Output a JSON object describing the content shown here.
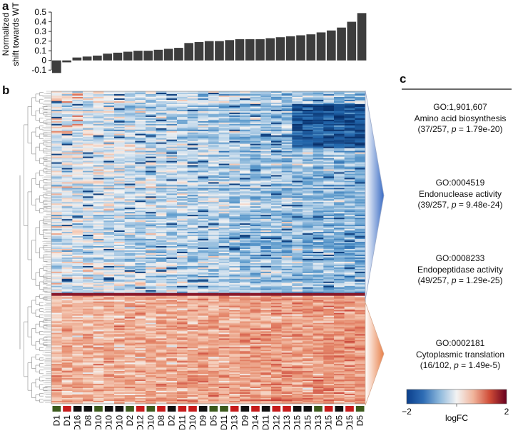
{
  "panels": {
    "a": "a",
    "b": "b",
    "c": "c"
  },
  "chart_data": [
    {
      "type": "bar",
      "panel": "a",
      "ylabel": "Normalized shift towards WT",
      "ylabel_lines": [
        "Normalized",
        "shift towards WT"
      ],
      "ylim": [
        -0.15,
        0.5
      ],
      "yticks": [
        "-0.1",
        "0",
        "0.1",
        "0.2",
        "0.3",
        "0.4",
        "0.5"
      ],
      "ytick_values": [
        -0.1,
        0,
        0.1,
        0.2,
        0.3,
        0.4,
        0.5
      ],
      "bar_color": "#3d3d3d",
      "values": [
        -0.13,
        -0.02,
        0.03,
        0.04,
        0.05,
        0.07,
        0.08,
        0.09,
        0.1,
        0.1,
        0.11,
        0.12,
        0.13,
        0.18,
        0.19,
        0.2,
        0.2,
        0.21,
        0.22,
        0.22,
        0.22,
        0.23,
        0.24,
        0.25,
        0.26,
        0.27,
        0.29,
        0.31,
        0.34,
        0.4,
        0.49
      ]
    },
    {
      "type": "heatmap",
      "panel": "b",
      "columns": [
        "D1",
        "D1",
        "D16",
        "D8",
        "D10",
        "D10",
        "D10",
        "D2",
        "D12",
        "D10",
        "D8",
        "D2",
        "D11",
        "D10",
        "D9",
        "D5",
        "D11",
        "D13",
        "D9",
        "D14",
        "D11",
        "D12",
        "D13",
        "D15",
        "D15",
        "D13",
        "D15",
        "D5",
        "D15",
        "D5"
      ],
      "column_groups": [
        "green",
        "red",
        "black",
        "black",
        "green",
        "black",
        "black",
        "green",
        "red",
        "green",
        "red",
        "black",
        "red",
        "red",
        "black",
        "green",
        "green",
        "red",
        "black",
        "red",
        "black",
        "red",
        "red",
        "black",
        "black",
        "green",
        "red",
        "black",
        "red",
        "green"
      ],
      "group_colors": {
        "green": "#3c5a1d",
        "red": "#c51b1b",
        "black": "#111111"
      },
      "legend": {
        "label": "logFC",
        "min_label": "−2",
        "max_label": "2",
        "min": -2,
        "max": 2,
        "colors": [
          "#0b3f8c",
          "#2f6db5",
          "#8fb9dc",
          "#f3f3f3",
          "#f0b49b",
          "#cf4b36",
          "#67001f"
        ]
      },
      "clusters": [
        {
          "name": "top-blue",
          "fraction": 0.645
        },
        {
          "name": "bottom-red",
          "fraction": 0.355
        }
      ]
    }
  ],
  "go_terms": [
    {
      "id": "GO:1,901,607",
      "name": "Amino acid biosynthesis",
      "count": "(37/257, ",
      "p_label": "p",
      "p_value": " = 1.79e-20)"
    },
    {
      "id": "GO:0004519",
      "name": "Endonuclease activity",
      "count": "(39/257, ",
      "p_label": "p",
      "p_value": " = 9.48e-24)"
    },
    {
      "id": "GO:0008233",
      "name": "Endopeptidase activity",
      "count": "(49/257, ",
      "p_label": "p",
      "p_value": " = 1.29e-25)"
    },
    {
      "id": "GO:0002181",
      "name": "Cytoplasmic translation",
      "count": "(16/102, ",
      "p_label": "p",
      "p_value": " = 1.49e-5)"
    }
  ],
  "colors": {
    "bar": "#3d3d3d",
    "blue_arrow": "#3a6cc4",
    "orange_arrow": "#e8804a"
  }
}
